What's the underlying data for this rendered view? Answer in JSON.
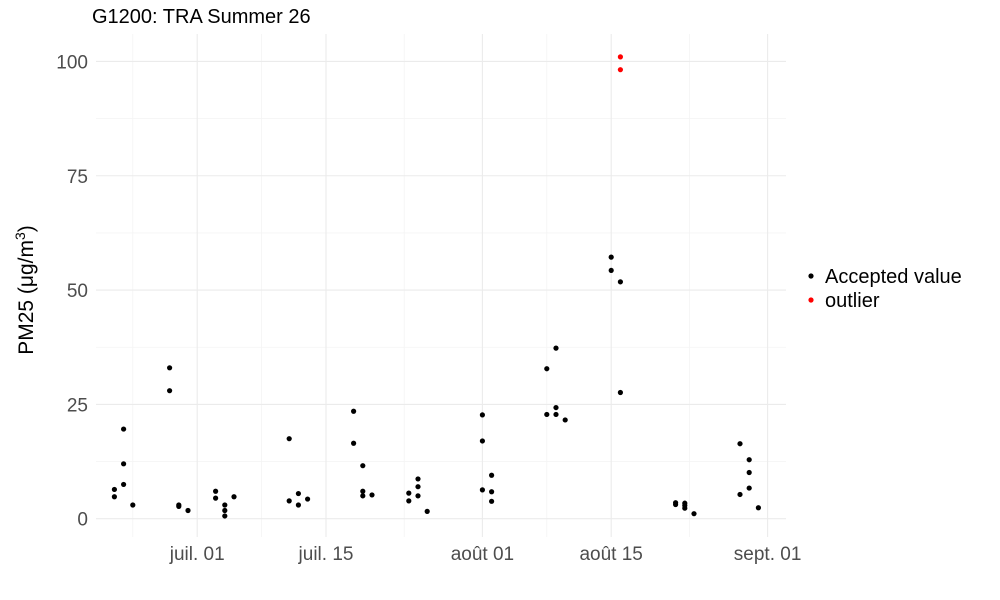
{
  "chart_data": {
    "type": "scatter",
    "title": "G1200: TRA Summer 26",
    "xlabel": "",
    "ylabel": "PM25 (μg/m³)",
    "ylabel_parts": {
      "main": "PM25 (",
      "unit": "μg/m",
      "sup": "3",
      "close": ")"
    },
    "x_ticks": [
      "2025-07-01",
      "2025-07-15",
      "2025-08-01",
      "2025-08-15",
      "2025-09-01"
    ],
    "x_tick_labels": [
      "juil. 01",
      "juil. 15",
      "août 01",
      "août 15",
      "sept. 01"
    ],
    "xlim": [
      "2025-06-20",
      "2025-09-03"
    ],
    "y_ticks": [
      0,
      25,
      50,
      75,
      100
    ],
    "y_tick_labels": [
      "0",
      "25",
      "50",
      "75",
      "100"
    ],
    "ylim": [
      -4,
      106
    ],
    "grid": true,
    "legend_position": "right",
    "series": [
      {
        "name": "Accepted value",
        "color": "#000000",
        "points": [
          [
            "2025-06-22",
            6.4
          ],
          [
            "2025-06-22",
            4.8
          ],
          [
            "2025-06-23",
            19.6
          ],
          [
            "2025-06-23",
            12.0
          ],
          [
            "2025-06-23",
            7.5
          ],
          [
            "2025-06-24",
            3.0
          ],
          [
            "2025-06-28",
            33.0
          ],
          [
            "2025-06-28",
            28.0
          ],
          [
            "2025-06-29",
            3.0
          ],
          [
            "2025-06-29",
            2.7
          ],
          [
            "2025-06-30",
            1.8
          ],
          [
            "2025-07-03",
            4.5
          ],
          [
            "2025-07-03",
            6.0
          ],
          [
            "2025-07-04",
            3.0
          ],
          [
            "2025-07-04",
            1.8
          ],
          [
            "2025-07-04",
            0.6
          ],
          [
            "2025-07-05",
            4.8
          ],
          [
            "2025-07-11",
            17.5
          ],
          [
            "2025-07-11",
            3.9
          ],
          [
            "2025-07-12",
            5.5
          ],
          [
            "2025-07-12",
            3.0
          ],
          [
            "2025-07-13",
            4.3
          ],
          [
            "2025-07-18",
            16.5
          ],
          [
            "2025-07-18",
            23.5
          ],
          [
            "2025-07-19",
            11.6
          ],
          [
            "2025-07-19",
            6.0
          ],
          [
            "2025-07-19",
            5.0
          ],
          [
            "2025-07-20",
            5.2
          ],
          [
            "2025-07-24",
            5.6
          ],
          [
            "2025-07-24",
            3.9
          ],
          [
            "2025-07-25",
            5.0
          ],
          [
            "2025-07-25",
            7.0
          ],
          [
            "2025-07-25",
            8.7
          ],
          [
            "2025-07-26",
            1.6
          ],
          [
            "2025-08-01",
            22.7
          ],
          [
            "2025-08-01",
            17.0
          ],
          [
            "2025-08-01",
            6.3
          ],
          [
            "2025-08-02",
            5.9
          ],
          [
            "2025-08-02",
            9.5
          ],
          [
            "2025-08-02",
            3.8
          ],
          [
            "2025-08-08",
            32.8
          ],
          [
            "2025-08-08",
            22.8
          ],
          [
            "2025-08-09",
            24.3
          ],
          [
            "2025-08-09",
            22.8
          ],
          [
            "2025-08-09",
            37.3
          ],
          [
            "2025-08-10",
            21.6
          ],
          [
            "2025-08-15",
            57.2
          ],
          [
            "2025-08-15",
            54.3
          ],
          [
            "2025-08-16",
            51.8
          ],
          [
            "2025-08-16",
            27.6
          ],
          [
            "2025-08-22",
            3.5
          ],
          [
            "2025-08-22",
            3.1
          ],
          [
            "2025-08-23",
            2.3
          ],
          [
            "2025-08-23",
            3.4
          ],
          [
            "2025-08-23",
            2.9
          ],
          [
            "2025-08-24",
            1.1
          ],
          [
            "2025-08-29",
            16.4
          ],
          [
            "2025-08-29",
            5.3
          ],
          [
            "2025-08-30",
            12.9
          ],
          [
            "2025-08-30",
            10.1
          ],
          [
            "2025-08-30",
            6.7
          ],
          [
            "2025-08-31",
            2.4
          ]
        ]
      },
      {
        "name": "outlier",
        "color": "#ff0000",
        "points": [
          [
            "2025-08-16",
            101.0
          ],
          [
            "2025-08-16",
            98.2
          ]
        ]
      }
    ]
  }
}
